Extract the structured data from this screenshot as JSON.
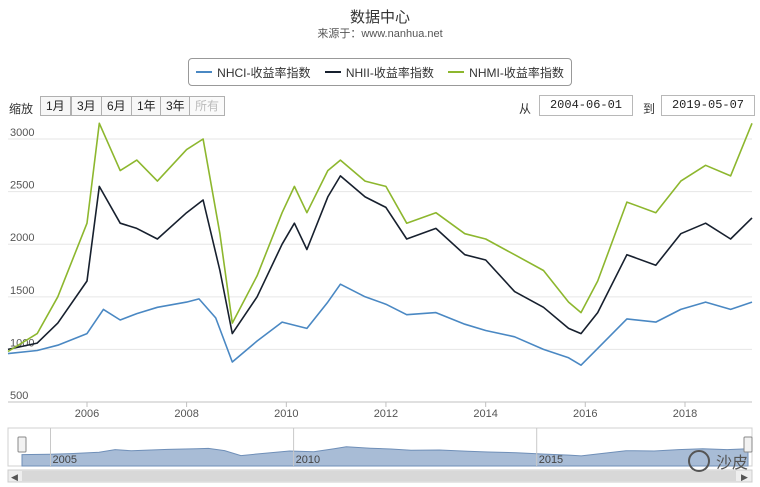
{
  "header": {
    "title": "数据中心",
    "subtitle": "来源于：www.nanhua.net"
  },
  "toolbar": {
    "zoom_label": "缩放",
    "zoom_buttons": [
      "1月",
      "3月",
      "6月",
      "1年",
      "3年",
      "所有"
    ],
    "from_label": "从",
    "from_date": "2004-06-01",
    "to_label": "到",
    "to_date": "2019-05-07"
  },
  "navigator": {
    "year_labels": [
      "2005",
      "2010",
      "2015"
    ]
  },
  "overlay": {
    "watermark_text": "沙皮"
  },
  "colors": {
    "NHCI": "#4a88c3",
    "NHII": "#17202e",
    "NHMI": "#8db72e",
    "grid": "#e6e6e6",
    "navigator_fill": "#a8bcd6"
  },
  "chart_data": {
    "type": "line",
    "title": "数据中心",
    "subtitle": "来源于：www.nanhua.net",
    "xlabel": "",
    "ylabel": "",
    "xlim": [
      "2004-06-01",
      "2019-05-07"
    ],
    "ylim": [
      500,
      3200
    ],
    "yticks": [
      500,
      1000,
      1500,
      2000,
      2500,
      3000
    ],
    "xticks": [
      "2006",
      "2008",
      "2010",
      "2012",
      "2014",
      "2016",
      "2018"
    ],
    "grid": true,
    "legend_position": "top",
    "series": [
      {
        "name": "NHCI-收益率指数",
        "points": [
          [
            "2004-06-01",
            960
          ],
          [
            "2005-01-01",
            990
          ],
          [
            "2005-06-01",
            1040
          ],
          [
            "2006-01-01",
            1150
          ],
          [
            "2006-05-01",
            1380
          ],
          [
            "2006-09-01",
            1280
          ],
          [
            "2007-01-01",
            1340
          ],
          [
            "2007-06-01",
            1400
          ],
          [
            "2008-01-01",
            1450
          ],
          [
            "2008-04-01",
            1480
          ],
          [
            "2008-08-01",
            1300
          ],
          [
            "2008-12-01",
            880
          ],
          [
            "2009-06-01",
            1080
          ],
          [
            "2009-12-01",
            1260
          ],
          [
            "2010-06-01",
            1200
          ],
          [
            "2010-11-01",
            1450
          ],
          [
            "2011-02-01",
            1620
          ],
          [
            "2011-08-01",
            1500
          ],
          [
            "2012-01-01",
            1430
          ],
          [
            "2012-06-01",
            1330
          ],
          [
            "2013-01-01",
            1350
          ],
          [
            "2013-08-01",
            1240
          ],
          [
            "2014-01-01",
            1180
          ],
          [
            "2014-08-01",
            1120
          ],
          [
            "2015-03-01",
            1000
          ],
          [
            "2015-09-01",
            920
          ],
          [
            "2015-12-01",
            850
          ],
          [
            "2016-04-01",
            1010
          ],
          [
            "2016-11-01",
            1290
          ],
          [
            "2017-06-01",
            1260
          ],
          [
            "2017-12-01",
            1380
          ],
          [
            "2018-06-01",
            1450
          ],
          [
            "2018-12-01",
            1380
          ],
          [
            "2019-05-07",
            1450
          ]
        ]
      },
      {
        "name": "NHII-收益率指数",
        "points": [
          [
            "2004-06-01",
            1000
          ],
          [
            "2005-01-01",
            1060
          ],
          [
            "2005-06-01",
            1250
          ],
          [
            "2006-01-01",
            1650
          ],
          [
            "2006-04-01",
            2550
          ],
          [
            "2006-09-01",
            2200
          ],
          [
            "2007-01-01",
            2150
          ],
          [
            "2007-06-01",
            2050
          ],
          [
            "2008-01-01",
            2300
          ],
          [
            "2008-05-01",
            2420
          ],
          [
            "2008-09-01",
            1750
          ],
          [
            "2008-12-01",
            1150
          ],
          [
            "2009-06-01",
            1500
          ],
          [
            "2009-12-01",
            2000
          ],
          [
            "2010-03-01",
            2200
          ],
          [
            "2010-06-01",
            1950
          ],
          [
            "2010-11-01",
            2450
          ],
          [
            "2011-02-01",
            2650
          ],
          [
            "2011-08-01",
            2450
          ],
          [
            "2012-01-01",
            2350
          ],
          [
            "2012-06-01",
            2050
          ],
          [
            "2013-01-01",
            2150
          ],
          [
            "2013-08-01",
            1900
          ],
          [
            "2014-01-01",
            1850
          ],
          [
            "2014-08-01",
            1550
          ],
          [
            "2015-03-01",
            1400
          ],
          [
            "2015-09-01",
            1200
          ],
          [
            "2015-12-01",
            1150
          ],
          [
            "2016-04-01",
            1350
          ],
          [
            "2016-11-01",
            1900
          ],
          [
            "2017-06-01",
            1800
          ],
          [
            "2017-12-01",
            2100
          ],
          [
            "2018-06-01",
            2200
          ],
          [
            "2018-12-01",
            2050
          ],
          [
            "2019-05-07",
            2250
          ]
        ]
      },
      {
        "name": "NHMI-收益率指数",
        "points": [
          [
            "2004-06-01",
            980
          ],
          [
            "2005-01-01",
            1150
          ],
          [
            "2005-06-01",
            1500
          ],
          [
            "2006-01-01",
            2200
          ],
          [
            "2006-04-01",
            3150
          ],
          [
            "2006-09-01",
            2700
          ],
          [
            "2007-01-01",
            2800
          ],
          [
            "2007-06-01",
            2600
          ],
          [
            "2008-01-01",
            2900
          ],
          [
            "2008-05-01",
            3000
          ],
          [
            "2008-09-01",
            2100
          ],
          [
            "2008-12-01",
            1250
          ],
          [
            "2009-06-01",
            1700
          ],
          [
            "2009-12-01",
            2300
          ],
          [
            "2010-03-01",
            2550
          ],
          [
            "2010-06-01",
            2300
          ],
          [
            "2010-11-01",
            2700
          ],
          [
            "2011-02-01",
            2800
          ],
          [
            "2011-08-01",
            2600
          ],
          [
            "2012-01-01",
            2550
          ],
          [
            "2012-06-01",
            2200
          ],
          [
            "2013-01-01",
            2300
          ],
          [
            "2013-08-01",
            2100
          ],
          [
            "2014-01-01",
            2050
          ],
          [
            "2014-08-01",
            1900
          ],
          [
            "2015-03-01",
            1750
          ],
          [
            "2015-09-01",
            1450
          ],
          [
            "2015-12-01",
            1350
          ],
          [
            "2016-04-01",
            1650
          ],
          [
            "2016-11-01",
            2400
          ],
          [
            "2017-06-01",
            2300
          ],
          [
            "2017-12-01",
            2600
          ],
          [
            "2018-06-01",
            2750
          ],
          [
            "2018-12-01",
            2650
          ],
          [
            "2019-05-07",
            3150
          ]
        ]
      }
    ]
  }
}
